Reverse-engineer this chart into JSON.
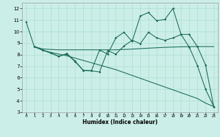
{
  "xlabel": "Humidex (Indice chaleur)",
  "bg_color": "#cceee8",
  "grid_color": "#aaddcc",
  "line_color": "#1a6b5a",
  "xlim": [
    -0.5,
    23.5
  ],
  "ylim": [
    3,
    12.5
  ],
  "xticks": [
    0,
    1,
    2,
    3,
    4,
    5,
    6,
    7,
    8,
    9,
    10,
    11,
    12,
    13,
    14,
    15,
    16,
    17,
    18,
    19,
    20,
    21,
    22,
    23
  ],
  "yticks": [
    3,
    4,
    5,
    6,
    7,
    8,
    9,
    10,
    11,
    12
  ],
  "line1_x": [
    0,
    1,
    2,
    3,
    4,
    5,
    6,
    7,
    8,
    9,
    10,
    11,
    12,
    13,
    14,
    15,
    16,
    17,
    18,
    19,
    20,
    21,
    22,
    23
  ],
  "line1_y": [
    10.85,
    8.7,
    8.4,
    8.15,
    7.85,
    8.1,
    7.45,
    6.65,
    6.6,
    8.4,
    8.05,
    9.45,
    9.95,
    9.15,
    11.35,
    11.65,
    10.95,
    11.05,
    12.0,
    9.75,
    8.65,
    7.05,
    5.0,
    3.5
  ],
  "line2_x": [
    1,
    2,
    3,
    4,
    5,
    6,
    7,
    8,
    9,
    10,
    11,
    12,
    13,
    14,
    15,
    16,
    17,
    18,
    19,
    20,
    21,
    22,
    23
  ],
  "line2_y": [
    8.7,
    8.5,
    8.45,
    8.42,
    8.42,
    8.42,
    8.42,
    8.42,
    8.42,
    8.42,
    8.42,
    8.45,
    8.48,
    8.52,
    8.56,
    8.6,
    8.63,
    8.66,
    8.68,
    8.7,
    8.7,
    8.7,
    8.7
  ],
  "line3_x": [
    1,
    2,
    3,
    4,
    5,
    6,
    7,
    8,
    9,
    10,
    11,
    12,
    13,
    14,
    15,
    16,
    17,
    18,
    19,
    20,
    21,
    22,
    23
  ],
  "line3_y": [
    8.7,
    8.4,
    8.15,
    7.85,
    8.05,
    7.4,
    6.65,
    6.6,
    6.5,
    8.35,
    8.05,
    8.75,
    9.25,
    8.95,
    9.95,
    9.45,
    9.25,
    9.45,
    9.75,
    9.75,
    8.7,
    7.1,
    3.5
  ],
  "line4_x": [
    1,
    2,
    3,
    4,
    5,
    6,
    7,
    8,
    9,
    10,
    11,
    12,
    13,
    14,
    15,
    16,
    17,
    18,
    19,
    20,
    21,
    22,
    23
  ],
  "line4_y": [
    8.7,
    8.4,
    8.2,
    8.05,
    7.9,
    7.7,
    7.5,
    7.3,
    7.1,
    6.9,
    6.7,
    6.45,
    6.2,
    5.95,
    5.7,
    5.45,
    5.2,
    4.95,
    4.7,
    4.45,
    4.2,
    3.8,
    3.5
  ]
}
